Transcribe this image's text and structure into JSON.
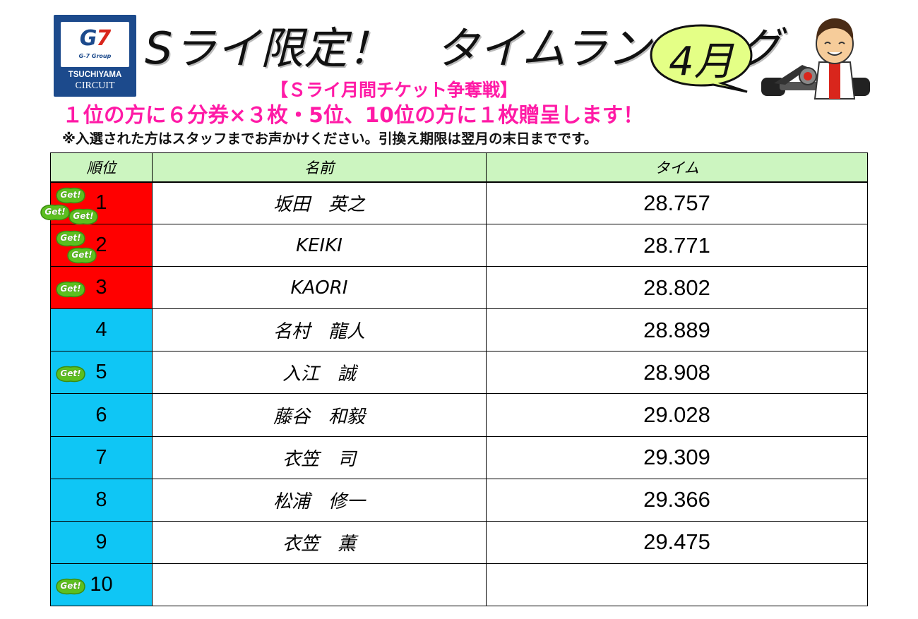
{
  "logo": {
    "brand": "G7",
    "group": "G-7 Group",
    "name": "TSUCHIYAMA",
    "circuit": "CIRCUIT"
  },
  "header": {
    "title": "Sライ限定！　タイムランキング",
    "month": "4月",
    "subtitle": "【Ｓライ月間チケット争奪戦】",
    "prize": "１位の方に６分券×３枚・5位、10位の方に１枚贈呈します！",
    "notice": "※入選された方はスタッフまでお声かけください。引換え期限は翌月の末日までです。"
  },
  "colors": {
    "accent_pink": "#ff1aa6",
    "top3_red": "#ff0000",
    "rank_blue": "#0fc6f5",
    "header_green": "#ccf5c0",
    "badge_green": "#5cbf1f"
  },
  "table": {
    "headers": {
      "rank": "順位",
      "name": "名前",
      "time": "タイム"
    },
    "badge_label": "Get!",
    "rows": [
      {
        "rank": "1",
        "name": "坂田　英之",
        "time": "28.757",
        "badges": 3,
        "highlight": "red"
      },
      {
        "rank": "2",
        "name": "KEIKI",
        "time": "28.771",
        "badges": 2,
        "highlight": "red"
      },
      {
        "rank": "3",
        "name": "KAORI",
        "time": "28.802",
        "badges": 1,
        "highlight": "red"
      },
      {
        "rank": "4",
        "name": "名村　龍人",
        "time": "28.889",
        "badges": 0,
        "highlight": "blue"
      },
      {
        "rank": "5",
        "name": "入江　誠",
        "time": "28.908",
        "badges": 1,
        "highlight": "blue"
      },
      {
        "rank": "6",
        "name": "藤谷　和毅",
        "time": "29.028",
        "badges": 0,
        "highlight": "blue"
      },
      {
        "rank": "7",
        "name": "衣笠　司",
        "time": "29.309",
        "badges": 0,
        "highlight": "blue"
      },
      {
        "rank": "8",
        "name": "松浦　修一",
        "time": "29.366",
        "badges": 0,
        "highlight": "blue"
      },
      {
        "rank": "9",
        "name": "衣笠　薫",
        "time": "29.475",
        "badges": 0,
        "highlight": "blue"
      },
      {
        "rank": "10",
        "name": "",
        "time": "",
        "badges": 1,
        "highlight": "blue"
      }
    ]
  }
}
